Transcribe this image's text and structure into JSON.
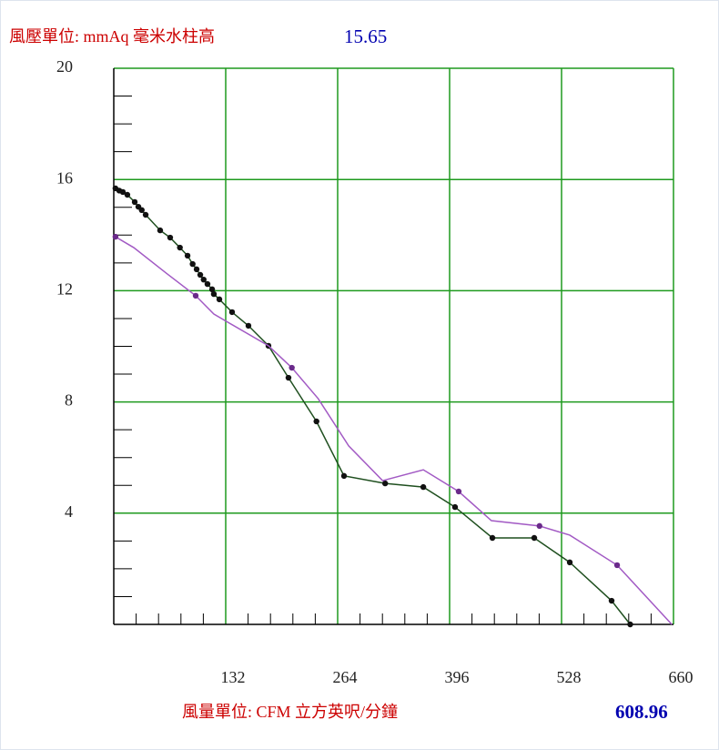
{
  "chart_data": {
    "type": "line",
    "y_label": "風壓單位:  mmAq 毫米水柱高",
    "y_readout": "15.65",
    "x_label": "風量單位:  CFM 立方英呎/分鐘",
    "x_readout": "608.96",
    "xlim": [
      0,
      660
    ],
    "xticks": [
      132,
      264,
      396,
      528,
      660
    ],
    "ylim": [
      0,
      20
    ],
    "yticks": [
      4,
      8,
      12,
      16,
      20
    ],
    "grid": true,
    "grid_color": "#1e9a1e",
    "series": [
      {
        "color": "#1f4f1f",
        "marker_color": "#111111",
        "x": [
          2,
          6.4,
          10.7,
          16,
          24.7,
          29,
          33,
          37.6,
          54.7,
          66.5,
          78,
          87,
          93,
          97.7,
          102,
          106,
          110.5,
          116,
          118,
          124.5,
          139.5,
          158.8,
          182.4,
          206,
          239,
          271.5,
          320,
          365,
          402.4,
          446.5,
          495.8,
          537.7,
          587,
          608.96
        ],
        "values": [
          15.68,
          15.6,
          15.55,
          15.45,
          15.19,
          15.02,
          14.9,
          14.73,
          14.17,
          13.91,
          13.55,
          13.26,
          12.96,
          12.77,
          12.57,
          12.4,
          12.24,
          12.05,
          11.88,
          11.69,
          11.23,
          10.74,
          10.02,
          8.87,
          7.3,
          5.34,
          5.07,
          4.94,
          4.22,
          3.11,
          3.11,
          2.23,
          0.85,
          0
        ]
      },
      {
        "color": "#a25ac4",
        "marker_color": "#6a2a8a",
        "x": [
          2,
          96.6,
          210,
          406.7,
          502,
          593.5
        ],
        "values": [
          13.94,
          11.82,
          9.23,
          4.78,
          3.54,
          2.13
        ],
        "line_x": [
          2,
          23.6,
          62,
          96.6,
          118,
          182.4,
          210,
          241,
          277,
          317,
          365,
          406.7,
          445.3,
          502,
          537.7,
          593.5,
          658
        ],
        "line_values": [
          13.94,
          13.55,
          12.63,
          11.82,
          11.16,
          10.02,
          9.23,
          8.12,
          6.42,
          5.17,
          5.56,
          4.78,
          3.73,
          3.54,
          3.21,
          2.13,
          0
        ]
      }
    ]
  }
}
